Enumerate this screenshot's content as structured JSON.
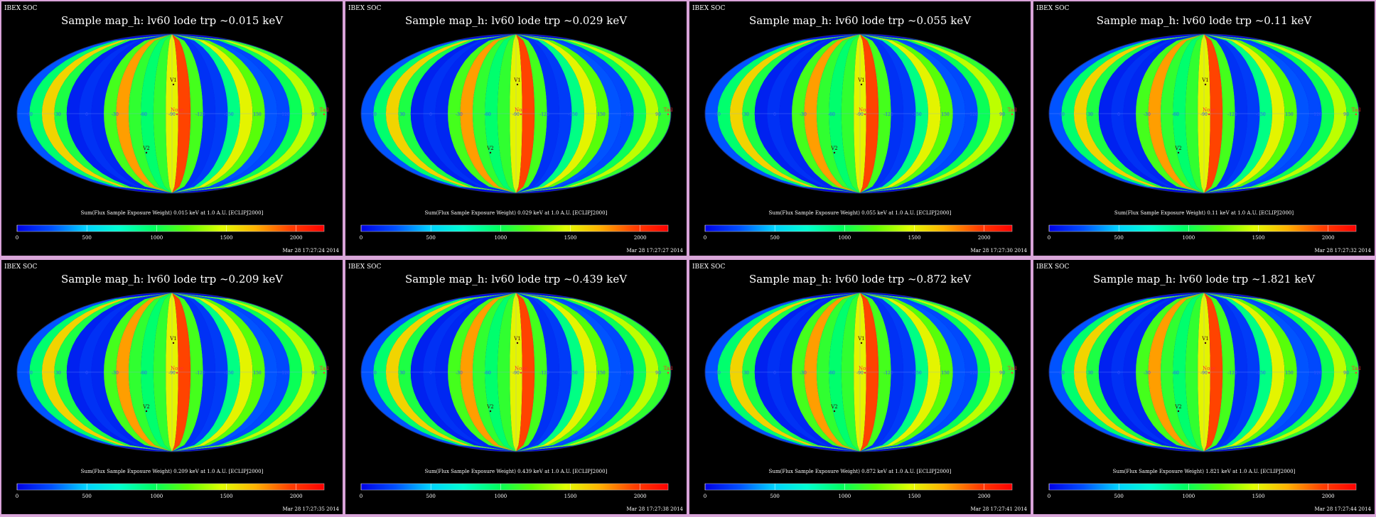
{
  "colors": {
    "background": "#000000",
    "frame": "#d9a3d9",
    "text": "#ffffff",
    "marker": "#ff3030",
    "colormap": [
      "#0000e6",
      "#0050ff",
      "#00d0ff",
      "#00ffd0",
      "#00ff60",
      "#60ff00",
      "#e0ff00",
      "#ffb000",
      "#ff4000",
      "#ff0000"
    ]
  },
  "chart_data": [
    {
      "type": "heatmap",
      "header": "IBEX SOC",
      "title": "Sample map_h: lv60 lode trp ~0.015 keV",
      "energy_kev": 0.015,
      "colorbar_label": "Sum(Flux Sample Exposure Weight)  0.015 keV at 1.0 A.U. [ECLIPJ2000]",
      "colorbar_ticks": [
        "0",
        "500",
        "1000",
        "1500",
        "2000"
      ],
      "colorbar_range": [
        0,
        2200
      ],
      "timestamp": "Mar 28 17:27:24 2014",
      "projection": "mollweide",
      "longitude_labels": [
        "60",
        "30",
        "0",
        "-30",
        "-60",
        "-90",
        "-120",
        "-150",
        "150",
        "120",
        "90"
      ],
      "markers": [
        "V1",
        "V2",
        "Nose",
        "Tail"
      ],
      "stripe_values": [
        250,
        950,
        1600,
        1050,
        100,
        150,
        120,
        1150,
        1750,
        1100,
        950,
        1100,
        1500,
        1950,
        1150,
        150,
        180,
        900,
        1500,
        1200,
        250,
        220,
        1000,
        1400,
        1100
      ]
    },
    {
      "type": "heatmap",
      "header": "IBEX SOC",
      "title": "Sample map_h: lv60 lode trp ~0.029 keV",
      "energy_kev": 0.029,
      "colorbar_label": "Sum(Flux Sample Exposure Weight)  0.029 keV at 1.0 A.U. [ECLIPJ2000]",
      "colorbar_ticks": [
        "0",
        "500",
        "1000",
        "1500",
        "2000"
      ],
      "colorbar_range": [
        0,
        2200
      ],
      "timestamp": "Mar 28 17:27:27 2014",
      "projection": "mollweide",
      "longitude_labels": [
        "60",
        "30",
        "0",
        "-30",
        "-60",
        "-90",
        "-120",
        "-150",
        "150",
        "120",
        "90"
      ],
      "markers": [
        "V1",
        "V2",
        "Nose",
        "Tail"
      ],
      "stripe_values": [
        250,
        950,
        1600,
        1050,
        100,
        150,
        120,
        1150,
        1750,
        1100,
        950,
        1100,
        1500,
        1950,
        1150,
        150,
        180,
        900,
        1500,
        1200,
        250,
        220,
        1000,
        1400,
        1100
      ]
    },
    {
      "type": "heatmap",
      "header": "IBEX SOC",
      "title": "Sample map_h: lv60 lode trp ~0.055 keV",
      "energy_kev": 0.055,
      "colorbar_label": "Sum(Flux Sample Exposure Weight)  0.055 keV at 1.0 A.U. [ECLIPJ2000]",
      "colorbar_ticks": [
        "0",
        "500",
        "1000",
        "1500",
        "2000"
      ],
      "colorbar_range": [
        0,
        2200
      ],
      "timestamp": "Mar 28 17:27:30 2014",
      "projection": "mollweide",
      "longitude_labels": [
        "60",
        "30",
        "0",
        "-30",
        "-60",
        "-90",
        "-120",
        "-150",
        "150",
        "120",
        "90"
      ],
      "markers": [
        "V1",
        "V2",
        "Nose",
        "Tail"
      ],
      "stripe_values": [
        250,
        950,
        1600,
        1050,
        100,
        150,
        120,
        1150,
        1750,
        1100,
        950,
        1100,
        1500,
        1950,
        1150,
        150,
        180,
        900,
        1500,
        1200,
        250,
        220,
        1000,
        1400,
        1100
      ]
    },
    {
      "type": "heatmap",
      "header": "IBEX SOC",
      "title": "Sample map_h: lv60 lode trp ~0.11 keV",
      "energy_kev": 0.11,
      "colorbar_label": "Sum(Flux Sample Exposure Weight)  0.11 keV at 1.0 A.U. [ECLIPJ2000]",
      "colorbar_ticks": [
        "0",
        "500",
        "1000",
        "1500",
        "2000"
      ],
      "colorbar_range": [
        0,
        2200
      ],
      "timestamp": "Mar 28 17:27:32 2014",
      "projection": "mollweide",
      "longitude_labels": [
        "60",
        "30",
        "0",
        "-30",
        "-60",
        "-90",
        "-120",
        "-150",
        "150",
        "120",
        "90"
      ],
      "markers": [
        "V1",
        "V2",
        "Nose",
        "Tail"
      ],
      "stripe_values": [
        250,
        950,
        1600,
        1050,
        100,
        150,
        120,
        1150,
        1750,
        1100,
        950,
        1100,
        1500,
        1950,
        1150,
        150,
        180,
        900,
        1500,
        1200,
        250,
        220,
        1000,
        1400,
        1100
      ]
    },
    {
      "type": "heatmap",
      "header": "IBEX SOC",
      "title": "Sample map_h: lv60 lode trp ~0.209 keV",
      "energy_kev": 0.209,
      "colorbar_label": "Sum(Flux Sample Exposure Weight)  0.209 keV at 1.0 A.U. [ECLIPJ2000]",
      "colorbar_ticks": [
        "0",
        "500",
        "1000",
        "1500",
        "2000"
      ],
      "colorbar_range": [
        0,
        2200
      ],
      "timestamp": "Mar 28 17:27:35 2014",
      "projection": "mollweide",
      "longitude_labels": [
        "60",
        "30",
        "0",
        "-30",
        "-60",
        "-90",
        "-120",
        "-150",
        "150",
        "120",
        "90"
      ],
      "markers": [
        "V1",
        "V2",
        "Nose",
        "Tail"
      ],
      "stripe_values": [
        250,
        950,
        1600,
        1050,
        100,
        150,
        120,
        1150,
        1750,
        1100,
        950,
        1100,
        1500,
        1950,
        1150,
        150,
        180,
        900,
        1500,
        1200,
        250,
        220,
        1000,
        1400,
        1100
      ]
    },
    {
      "type": "heatmap",
      "header": "IBEX SOC",
      "title": "Sample map_h: lv60 lode trp ~0.439 keV",
      "energy_kev": 0.439,
      "colorbar_label": "Sum(Flux Sample Exposure Weight)  0.439 keV at 1.0 A.U. [ECLIPJ2000]",
      "colorbar_ticks": [
        "0",
        "500",
        "1000",
        "1500",
        "2000"
      ],
      "colorbar_range": [
        0,
        2200
      ],
      "timestamp": "Mar 28 17:27:38 2014",
      "projection": "mollweide",
      "longitude_labels": [
        "60",
        "30",
        "0",
        "-30",
        "-60",
        "-90",
        "-120",
        "-150",
        "150",
        "120",
        "90"
      ],
      "markers": [
        "V1",
        "V2",
        "Nose",
        "Tail"
      ],
      "stripe_values": [
        250,
        950,
        1600,
        1050,
        100,
        150,
        120,
        1150,
        1750,
        1100,
        950,
        1100,
        1500,
        1950,
        1150,
        150,
        180,
        900,
        1500,
        1200,
        250,
        220,
        1000,
        1400,
        1100
      ]
    },
    {
      "type": "heatmap",
      "header": "IBEX SOC",
      "title": "Sample map_h: lv60 lode trp ~0.872 keV",
      "energy_kev": 0.872,
      "colorbar_label": "Sum(Flux Sample Exposure Weight)  0.872 keV at 1.0 A.U. [ECLIPJ2000]",
      "colorbar_ticks": [
        "0",
        "500",
        "1000",
        "1500",
        "2000"
      ],
      "colorbar_range": [
        0,
        2200
      ],
      "timestamp": "Mar 28 17:27:41 2014",
      "projection": "mollweide",
      "longitude_labels": [
        "60",
        "30",
        "0",
        "-30",
        "-60",
        "-90",
        "-120",
        "-150",
        "150",
        "120",
        "90"
      ],
      "markers": [
        "V1",
        "V2",
        "Nose",
        "Tail"
      ],
      "stripe_values": [
        250,
        950,
        1600,
        1050,
        100,
        150,
        120,
        1150,
        1750,
        1100,
        950,
        1100,
        1500,
        1950,
        1150,
        150,
        180,
        900,
        1500,
        1200,
        250,
        220,
        1000,
        1400,
        1100
      ]
    },
    {
      "type": "heatmap",
      "header": "IBEX SOC",
      "title": "Sample map_h: lv60 lode trp ~1.821 keV",
      "energy_kev": 1.821,
      "colorbar_label": "Sum(Flux Sample Exposure Weight)  1.821 keV at 1.0 A.U. [ECLIPJ2000]",
      "colorbar_ticks": [
        "0",
        "500",
        "1000",
        "1500",
        "2000"
      ],
      "colorbar_range": [
        0,
        2200
      ],
      "timestamp": "Mar 28 17:27:44 2014",
      "projection": "mollweide",
      "longitude_labels": [
        "60",
        "30",
        "0",
        "-30",
        "-60",
        "-90",
        "-120",
        "-150",
        "150",
        "120",
        "90"
      ],
      "markers": [
        "V1",
        "V2",
        "Nose",
        "Tail"
      ],
      "stripe_values": [
        250,
        950,
        1600,
        1050,
        100,
        150,
        120,
        1150,
        1750,
        1100,
        950,
        1100,
        1500,
        1950,
        1150,
        150,
        180,
        900,
        1500,
        1200,
        250,
        220,
        1000,
        1400,
        1100
      ]
    }
  ]
}
